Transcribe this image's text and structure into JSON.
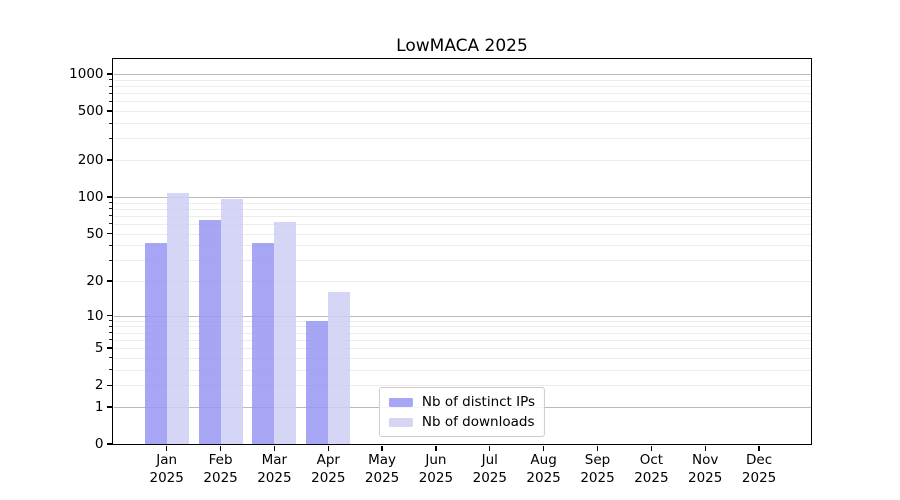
{
  "title": "LowMACA 2025",
  "legend": {
    "items": [
      {
        "label": "Nb of distinct IPs",
        "color": "rgba(150,150,243,0.85)"
      },
      {
        "label": "Nb of downloads",
        "color": "rgba(206,206,245,0.85)"
      }
    ]
  },
  "chart_data": {
    "type": "bar",
    "title": "LowMACA 2025",
    "categories": [
      "Jan",
      "Feb",
      "Mar",
      "Apr",
      "May",
      "Jun",
      "Jul",
      "Aug",
      "Sep",
      "Oct",
      "Nov",
      "Dec"
    ],
    "year": "2025",
    "series": [
      {
        "name": "Nb of distinct IPs",
        "color": "rgba(150,150,243,0.85)",
        "values": [
          42,
          65,
          42,
          9,
          0,
          0,
          0,
          0,
          0,
          0,
          0,
          0
        ]
      },
      {
        "name": "Nb of downloads",
        "color": "rgba(206,206,245,0.85)",
        "values": [
          108,
          97,
          62,
          16,
          0,
          0,
          0,
          0,
          0,
          0,
          0,
          0
        ]
      }
    ],
    "xlabel": "",
    "ylabel": "",
    "yscale": "log1p",
    "ylim": [
      0,
      1300
    ],
    "yticks": [
      0,
      1,
      2,
      5,
      10,
      20,
      50,
      100,
      200,
      500,
      1000
    ],
    "major_gridline_values": [
      1,
      10,
      100,
      1000
    ],
    "grid": true,
    "legend_position": "lower center"
  },
  "colors": {
    "major_grid": "#b9b9b9",
    "minor_grid": "#ececec",
    "axis": "#000000"
  }
}
